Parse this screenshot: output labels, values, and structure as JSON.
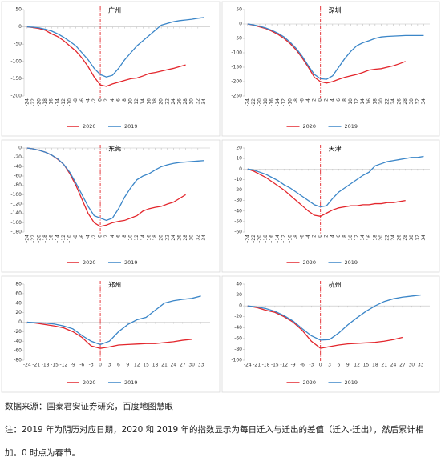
{
  "chart_data": [
    {
      "type": "line",
      "title": "广州",
      "x": [
        -24,
        -22,
        -20,
        -18,
        -16,
        -14,
        -12,
        -10,
        -8,
        -6,
        -4,
        -2,
        0,
        2,
        4,
        6,
        8,
        10,
        12,
        14,
        16,
        18,
        20,
        22,
        24,
        26,
        28,
        30,
        32,
        34
      ],
      "series": [
        {
          "name": "2020",
          "color": "#e3262c",
          "values": [
            0,
            -2,
            -5,
            -10,
            -20,
            -28,
            -40,
            -55,
            -70,
            -90,
            -115,
            -145,
            -168,
            -172,
            -165,
            -160,
            -155,
            -150,
            -148,
            -142,
            -135,
            -132,
            -128,
            -124,
            -120,
            -115,
            -110,
            null,
            null,
            null
          ]
        },
        {
          "name": "2019",
          "color": "#3b86c8",
          "values": [
            0,
            -1,
            -3,
            -7,
            -12,
            -20,
            -30,
            -42,
            -55,
            -75,
            -95,
            -120,
            -138,
            -145,
            -140,
            -120,
            -95,
            -75,
            -55,
            -40,
            -25,
            -10,
            5,
            10,
            15,
            18,
            20,
            22,
            25,
            27
          ]
        }
      ],
      "xlim": [
        -25,
        36
      ],
      "xticks": [
        -24,
        -22,
        -20,
        -18,
        -16,
        -14,
        -12,
        -10,
        -8,
        -6,
        -4,
        -2,
        0,
        2,
        4,
        6,
        8,
        10,
        12,
        14,
        16,
        18,
        20,
        22,
        24,
        26,
        28,
        30,
        32,
        34
      ],
      "xtick_rotate": true,
      "ylim": [
        -200,
        50
      ],
      "yticks": [
        -200,
        -150,
        -100,
        -50,
        0,
        50
      ],
      "vline": 0
    },
    {
      "type": "line",
      "title": "深圳",
      "x": [
        -24,
        -22,
        -20,
        -18,
        -16,
        -14,
        -12,
        -10,
        -8,
        -6,
        -4,
        -2,
        0,
        2,
        4,
        6,
        8,
        10,
        12,
        14,
        16,
        18,
        20,
        22,
        24,
        26,
        28,
        30,
        32,
        34
      ],
      "series": [
        {
          "name": "2020",
          "color": "#e3262c",
          "values": [
            0,
            -4,
            -10,
            -16,
            -25,
            -36,
            -50,
            -68,
            -90,
            -118,
            -150,
            -185,
            -200,
            -205,
            -200,
            -192,
            -185,
            -180,
            -175,
            -168,
            -160,
            -157,
            -155,
            -150,
            -145,
            -138,
            -130,
            null,
            null,
            null
          ]
        },
        {
          "name": "2019",
          "color": "#3b86c8",
          "values": [
            0,
            -3,
            -8,
            -14,
            -22,
            -32,
            -45,
            -63,
            -85,
            -112,
            -145,
            -175,
            -190,
            -192,
            -180,
            -150,
            -120,
            -95,
            -75,
            -65,
            -58,
            -50,
            -45,
            -43,
            -42,
            -41,
            -40,
            -40,
            -40,
            -40
          ]
        }
      ],
      "xlim": [
        -25,
        36
      ],
      "xticks": [
        -24,
        -22,
        -20,
        -18,
        -16,
        -14,
        -12,
        -10,
        -8,
        -6,
        -4,
        -2,
        0,
        2,
        4,
        6,
        8,
        10,
        12,
        14,
        16,
        18,
        20,
        22,
        24,
        26,
        28,
        30,
        32,
        34
      ],
      "xtick_rotate": true,
      "ylim": [
        -250,
        50
      ],
      "yticks": [
        -250,
        -200,
        -150,
        -100,
        -50,
        0,
        50
      ],
      "vline": 0
    },
    {
      "type": "line",
      "title": "东莞",
      "x": [
        -24,
        -22,
        -20,
        -18,
        -16,
        -14,
        -12,
        -10,
        -8,
        -6,
        -4,
        -2,
        0,
        2,
        4,
        6,
        8,
        10,
        12,
        14,
        16,
        18,
        20,
        22,
        24,
        26,
        28,
        30,
        32,
        34
      ],
      "series": [
        {
          "name": "2020",
          "color": "#e3262c",
          "values": [
            0,
            -2,
            -5,
            -9,
            -15,
            -24,
            -35,
            -55,
            -80,
            -110,
            -140,
            -160,
            -168,
            -165,
            -160,
            -157,
            -155,
            -150,
            -145,
            -135,
            -130,
            -127,
            -125,
            -120,
            -116,
            -108,
            -100,
            null,
            null,
            null
          ]
        },
        {
          "name": "2019",
          "color": "#3b86c8",
          "values": [
            0,
            -2,
            -5,
            -9,
            -15,
            -23,
            -35,
            -52,
            -75,
            -100,
            -125,
            -145,
            -150,
            -155,
            -150,
            -130,
            -105,
            -85,
            -68,
            -60,
            -55,
            -47,
            -40,
            -36,
            -33,
            -31,
            -30,
            -29,
            -28,
            -27
          ]
        }
      ],
      "xlim": [
        -25,
        36
      ],
      "xticks": [
        -24,
        -22,
        -20,
        -18,
        -16,
        -14,
        -12,
        -10,
        -8,
        -6,
        -4,
        -2,
        0,
        2,
        4,
        6,
        8,
        10,
        12,
        14,
        16,
        18,
        20,
        22,
        24,
        26,
        28,
        30,
        32,
        34
      ],
      "xtick_rotate": true,
      "ylim": [
        -180,
        0
      ],
      "yticks": [
        -180,
        -160,
        -140,
        -120,
        -100,
        -80,
        -60,
        -40,
        -20,
        0
      ],
      "vline": 0
    },
    {
      "type": "line",
      "title": "天津",
      "x": [
        -24,
        -22,
        -20,
        -18,
        -16,
        -14,
        -12,
        -10,
        -8,
        -6,
        -4,
        -2,
        0,
        2,
        4,
        6,
        8,
        10,
        12,
        14,
        16,
        18,
        20,
        22,
        24,
        26,
        28,
        30,
        32,
        34
      ],
      "series": [
        {
          "name": "2020",
          "color": "#e3262c",
          "values": [
            0,
            -2,
            -5,
            -8,
            -12,
            -16,
            -20,
            -25,
            -30,
            -35,
            -40,
            -44,
            -45,
            -42,
            -39,
            -37,
            -36,
            -35,
            -35,
            -34,
            -34,
            -33,
            -33,
            -32,
            -32,
            -31,
            -30,
            null,
            null,
            null
          ]
        },
        {
          "name": "2019",
          "color": "#3b86c8",
          "values": [
            0,
            -1,
            -3,
            -5,
            -8,
            -11,
            -15,
            -18,
            -22,
            -26,
            -30,
            -34,
            -36,
            -35,
            -28,
            -22,
            -18,
            -14,
            -10,
            -6,
            -3,
            3,
            5,
            7,
            8,
            9,
            10,
            11,
            11,
            12
          ]
        }
      ],
      "xlim": [
        -25,
        36
      ],
      "xticks": [
        -24,
        -22,
        -20,
        -18,
        -16,
        -14,
        -12,
        -10,
        -8,
        -6,
        -4,
        -2,
        0,
        2,
        4,
        6,
        8,
        10,
        12,
        14,
        16,
        18,
        20,
        22,
        24,
        26,
        28,
        30,
        32,
        34
      ],
      "xtick_rotate": true,
      "ylim": [
        -60,
        20
      ],
      "yticks": [
        -60,
        -50,
        -40,
        -30,
        -20,
        -10,
        0,
        10,
        20
      ],
      "vline": 0
    },
    {
      "type": "line",
      "title": "郑州",
      "x": [
        -24,
        -21,
        -18,
        -15,
        -12,
        -9,
        -6,
        -3,
        0,
        3,
        6,
        9,
        12,
        15,
        18,
        21,
        24,
        27,
        30,
        33
      ],
      "series": [
        {
          "name": "2020",
          "color": "#e3262c",
          "values": [
            0,
            -2,
            -5,
            -8,
            -12,
            -20,
            -32,
            -50,
            -55,
            -52,
            -48,
            -47,
            -46,
            -45,
            -45,
            -43,
            -41,
            -38,
            -36,
            null
          ]
        },
        {
          "name": "2019",
          "color": "#3b86c8",
          "values": [
            0,
            -1,
            -2,
            -4,
            -8,
            -14,
            -28,
            -40,
            -47,
            -40,
            -20,
            -5,
            5,
            10,
            25,
            40,
            45,
            48,
            50,
            55
          ]
        }
      ],
      "xlim": [
        -25,
        36
      ],
      "xticks": [
        -24,
        -21,
        -18,
        -15,
        -12,
        -9,
        -6,
        -3,
        0,
        3,
        6,
        9,
        12,
        15,
        18,
        21,
        24,
        27,
        30,
        33
      ],
      "xtick_rotate": false,
      "ylim": [
        -80,
        80
      ],
      "yticks": [
        -80,
        -60,
        -40,
        -20,
        0,
        20,
        40,
        60,
        80
      ],
      "vline": 0
    },
    {
      "type": "line",
      "title": "杭州",
      "x": [
        -24,
        -21,
        -18,
        -15,
        -12,
        -9,
        -6,
        -3,
        0,
        3,
        6,
        9,
        12,
        15,
        18,
        21,
        24,
        27,
        30,
        33
      ],
      "series": [
        {
          "name": "2020",
          "color": "#e3262c",
          "values": [
            0,
            -3,
            -8,
            -12,
            -20,
            -30,
            -45,
            -65,
            -78,
            -75,
            -72,
            -70,
            -69,
            -68,
            -67,
            -65,
            -62,
            -58,
            null,
            null
          ]
        },
        {
          "name": "2019",
          "color": "#3b86c8",
          "values": [
            0,
            -2,
            -5,
            -10,
            -18,
            -28,
            -42,
            -55,
            -63,
            -62,
            -50,
            -35,
            -22,
            -10,
            0,
            8,
            13,
            16,
            18,
            20
          ]
        }
      ],
      "xlim": [
        -25,
        36
      ],
      "xticks": [
        -24,
        -21,
        -18,
        -15,
        -12,
        -9,
        -6,
        -3,
        0,
        3,
        6,
        9,
        12,
        15,
        18,
        21,
        24,
        27,
        30,
        33
      ],
      "xtick_rotate": false,
      "ylim": [
        -100,
        40
      ],
      "yticks": [
        -100,
        -80,
        -60,
        -40,
        -20,
        0,
        20,
        40
      ],
      "vline": 0
    }
  ],
  "source": "数据来源：国泰君安证券研究，百度地图慧眼",
  "note": "注：2019 年为阴历对应日期，2020 和 2019 年的指数显示为每日迁入与迁出的差值（迁入-迁出），然后累计相加。0 时点为春节。"
}
